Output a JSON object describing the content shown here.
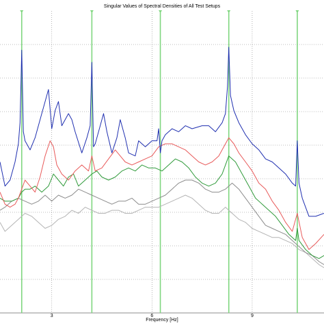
{
  "chart_data": {
    "type": "line",
    "title": "Singular Values of Spectral Densities of All Test Setups",
    "xlabel": "Frequency [Hz]",
    "ylabel": "",
    "x_ticks": [
      3,
      6,
      9
    ],
    "xlim": [
      1.45,
      11.15
    ],
    "ylim": [
      0,
      1
    ],
    "grid": true,
    "grid_color": "#7f7f7f",
    "peak_color": "#7fd67f",
    "peak_markers": [
      2.1,
      4.2,
      6.25,
      8.3,
      10.35
    ],
    "series": [
      {
        "color": "#1f2fb0",
        "x": [
          1.45,
          1.6,
          1.75,
          1.9,
          2.0,
          2.05,
          2.1,
          2.15,
          2.2,
          2.35,
          2.5,
          2.7,
          2.9,
          3.0,
          3.05,
          3.1,
          3.2,
          3.3,
          3.4,
          3.5,
          3.6,
          3.7,
          3.9,
          4.05,
          4.15,
          4.2,
          4.25,
          4.3,
          4.45,
          4.55,
          4.65,
          4.8,
          4.95,
          5.05,
          5.2,
          5.3,
          5.5,
          5.6,
          5.8,
          6.0,
          6.15,
          6.2,
          6.25,
          6.3,
          6.4,
          6.6,
          6.8,
          7.0,
          7.2,
          7.5,
          7.7,
          7.9,
          8.1,
          8.2,
          8.26,
          8.3,
          8.35,
          8.45,
          8.6,
          8.8,
          9.0,
          9.2,
          9.4,
          9.6,
          9.8,
          10.0,
          10.2,
          10.3,
          10.35,
          10.4,
          10.5,
          10.7,
          10.9,
          11.15
        ],
        "y": [
          0.5,
          0.42,
          0.44,
          0.5,
          0.56,
          0.63,
          0.87,
          0.6,
          0.57,
          0.54,
          0.58,
          0.66,
          0.74,
          0.61,
          0.64,
          0.67,
          0.7,
          0.62,
          0.64,
          0.66,
          0.64,
          0.6,
          0.53,
          0.58,
          0.62,
          0.83,
          0.55,
          0.56,
          0.62,
          0.66,
          0.6,
          0.53,
          0.58,
          0.64,
          0.58,
          0.53,
          0.52,
          0.57,
          0.55,
          0.57,
          0.57,
          0.61,
          0.53,
          0.57,
          0.59,
          0.61,
          0.6,
          0.62,
          0.61,
          0.62,
          0.62,
          0.6,
          0.63,
          0.66,
          0.75,
          0.88,
          0.72,
          0.67,
          0.63,
          0.59,
          0.56,
          0.54,
          0.51,
          0.5,
          0.48,
          0.46,
          0.43,
          0.42,
          0.57,
          0.43,
          0.38,
          0.32,
          0.32,
          0.33
        ]
      },
      {
        "color": "#e85a5a",
        "x": [
          1.45,
          1.6,
          1.75,
          1.9,
          2.0,
          2.1,
          2.2,
          2.35,
          2.5,
          2.65,
          2.8,
          2.95,
          3.05,
          3.15,
          3.3,
          3.5,
          3.7,
          3.9,
          4.1,
          4.2,
          4.3,
          4.5,
          4.7,
          4.9,
          5.05,
          5.2,
          5.4,
          5.6,
          5.8,
          6.0,
          6.2,
          6.4,
          6.6,
          6.8,
          7.0,
          7.2,
          7.4,
          7.6,
          7.8,
          8.0,
          8.15,
          8.3,
          8.45,
          8.6,
          8.8,
          9.0,
          9.2,
          9.4,
          9.6,
          9.8,
          10.0,
          10.2,
          10.35,
          10.5,
          10.7,
          10.9,
          11.15
        ],
        "y": [
          0.4,
          0.36,
          0.35,
          0.36,
          0.38,
          0.41,
          0.44,
          0.42,
          0.4,
          0.45,
          0.52,
          0.57,
          0.55,
          0.49,
          0.46,
          0.44,
          0.47,
          0.49,
          0.47,
          0.52,
          0.47,
          0.48,
          0.51,
          0.54,
          0.52,
          0.5,
          0.49,
          0.5,
          0.51,
          0.52,
          0.55,
          0.56,
          0.56,
          0.55,
          0.54,
          0.52,
          0.5,
          0.49,
          0.5,
          0.52,
          0.55,
          0.58,
          0.56,
          0.53,
          0.5,
          0.47,
          0.43,
          0.41,
          0.37,
          0.34,
          0.3,
          0.27,
          0.33,
          0.25,
          0.21,
          0.23,
          0.26
        ]
      },
      {
        "color": "#2f9a3a",
        "x": [
          1.45,
          1.6,
          1.8,
          2.0,
          2.1,
          2.2,
          2.35,
          2.5,
          2.7,
          2.9,
          3.05,
          3.2,
          3.35,
          3.5,
          3.65,
          3.8,
          4.0,
          4.2,
          4.35,
          4.5,
          4.7,
          4.9,
          5.1,
          5.3,
          5.5,
          5.7,
          5.9,
          6.1,
          6.3,
          6.5,
          6.7,
          6.9,
          7.1,
          7.3,
          7.5,
          7.7,
          7.9,
          8.1,
          8.3,
          8.5,
          8.7,
          8.9,
          9.1,
          9.3,
          9.5,
          9.7,
          9.9,
          10.1,
          10.3,
          10.35,
          10.4,
          10.6,
          10.8,
          11.0,
          11.15
        ],
        "y": [
          0.38,
          0.37,
          0.37,
          0.38,
          0.4,
          0.41,
          0.41,
          0.42,
          0.4,
          0.42,
          0.46,
          0.44,
          0.42,
          0.45,
          0.46,
          0.42,
          0.44,
          0.46,
          0.47,
          0.45,
          0.44,
          0.45,
          0.47,
          0.48,
          0.47,
          0.49,
          0.48,
          0.48,
          0.47,
          0.49,
          0.51,
          0.5,
          0.48,
          0.45,
          0.43,
          0.42,
          0.43,
          0.46,
          0.52,
          0.5,
          0.46,
          0.42,
          0.38,
          0.36,
          0.34,
          0.32,
          0.29,
          0.26,
          0.24,
          0.28,
          0.24,
          0.21,
          0.19,
          0.18,
          0.19
        ]
      },
      {
        "color": "#8c8c8c",
        "x": [
          1.45,
          1.6,
          1.8,
          2.0,
          2.2,
          2.4,
          2.6,
          2.8,
          3.0,
          3.2,
          3.4,
          3.6,
          3.8,
          4.0,
          4.2,
          4.4,
          4.6,
          4.8,
          5.0,
          5.2,
          5.4,
          5.6,
          5.8,
          6.0,
          6.2,
          6.4,
          6.6,
          6.8,
          7.0,
          7.2,
          7.4,
          7.6,
          7.8,
          8.0,
          8.2,
          8.4,
          8.6,
          8.8,
          9.0,
          9.2,
          9.4,
          9.6,
          9.8,
          10.0,
          10.2,
          10.4,
          10.6,
          10.8,
          11.0,
          11.15
        ],
        "y": [
          0.34,
          0.35,
          0.37,
          0.38,
          0.37,
          0.36,
          0.37,
          0.39,
          0.37,
          0.39,
          0.38,
          0.39,
          0.41,
          0.4,
          0.39,
          0.38,
          0.37,
          0.36,
          0.37,
          0.37,
          0.38,
          0.36,
          0.36,
          0.37,
          0.38,
          0.39,
          0.41,
          0.43,
          0.44,
          0.44,
          0.43,
          0.41,
          0.4,
          0.4,
          0.41,
          0.43,
          0.41,
          0.38,
          0.35,
          0.32,
          0.29,
          0.28,
          0.27,
          0.26,
          0.24,
          0.22,
          0.2,
          0.19,
          0.17,
          0.16
        ]
      },
      {
        "color": "#b4b4b4",
        "x": [
          1.45,
          1.6,
          1.8,
          2.0,
          2.2,
          2.4,
          2.6,
          2.8,
          3.0,
          3.2,
          3.4,
          3.6,
          3.8,
          4.0,
          4.2,
          4.4,
          4.6,
          4.8,
          5.0,
          5.2,
          5.4,
          5.6,
          5.8,
          6.0,
          6.2,
          6.4,
          6.6,
          6.8,
          7.0,
          7.2,
          7.4,
          7.6,
          7.8,
          8.0,
          8.2,
          8.4,
          8.6,
          8.8,
          9.0,
          9.2,
          9.4,
          9.6,
          9.8,
          10.0,
          10.2,
          10.4,
          10.6,
          10.8,
          11.0,
          11.15
        ],
        "y": [
          0.3,
          0.27,
          0.29,
          0.31,
          0.33,
          0.32,
          0.3,
          0.28,
          0.29,
          0.31,
          0.32,
          0.34,
          0.33,
          0.35,
          0.34,
          0.33,
          0.33,
          0.34,
          0.34,
          0.33,
          0.33,
          0.34,
          0.35,
          0.35,
          0.35,
          0.36,
          0.37,
          0.38,
          0.39,
          0.38,
          0.36,
          0.34,
          0.33,
          0.33,
          0.35,
          0.33,
          0.31,
          0.3,
          0.28,
          0.27,
          0.26,
          0.25,
          0.25,
          0.24,
          0.23,
          0.21,
          0.2,
          0.18,
          0.16,
          0.15
        ]
      }
    ]
  }
}
